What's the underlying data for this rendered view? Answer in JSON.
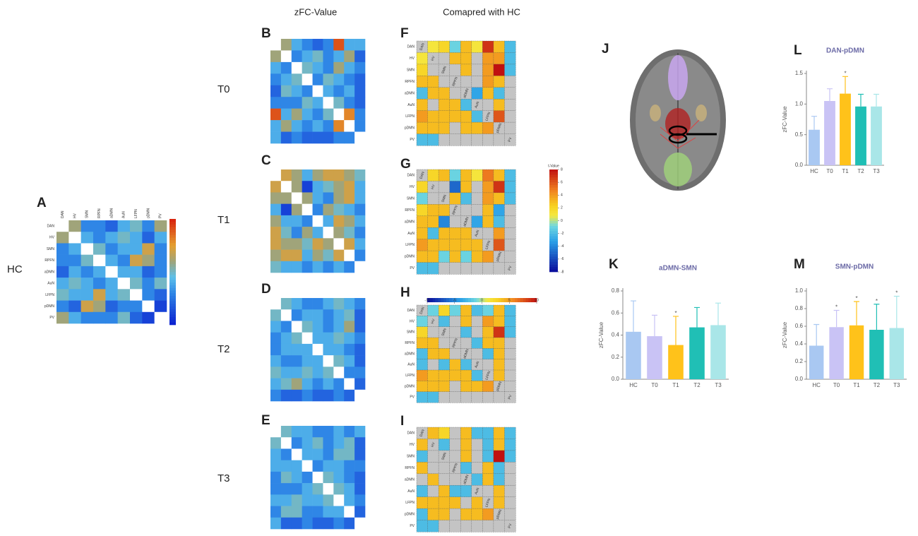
{
  "column_headers": [
    "zFC-Value",
    "Comapred with HC"
  ],
  "brain_panel": "J",
  "networks": [
    "DAN",
    "HV",
    "SMN",
    "RPFN",
    "aDMN",
    "AuN",
    "LFPN",
    "pDMN",
    "PV"
  ],
  "chart_data": [
    {
      "panel": "A",
      "type": "heatmap",
      "group": "HC",
      "show_labels": true,
      "zlim": [
        0,
        1
      ],
      "values": [
        [
          null,
          0.6,
          0.3,
          0.3,
          0.2,
          0.4,
          0.5,
          0.3,
          0.6
        ],
        [
          0.6,
          null,
          0.4,
          0.3,
          0.4,
          0.5,
          0.4,
          0.2,
          0.4
        ],
        [
          0.3,
          0.4,
          null,
          0.5,
          0.3,
          0.4,
          0.4,
          0.7,
          0.3
        ],
        [
          0.3,
          0.3,
          0.5,
          null,
          0.4,
          0.3,
          0.7,
          0.6,
          0.3
        ],
        [
          0.2,
          0.4,
          0.3,
          0.4,
          null,
          0.4,
          0.4,
          0.2,
          0.3
        ],
        [
          0.4,
          0.5,
          0.4,
          0.3,
          0.4,
          null,
          0.5,
          0.3,
          0.5
        ],
        [
          0.5,
          0.4,
          0.4,
          0.7,
          0.4,
          0.5,
          null,
          0.3,
          0.2
        ],
        [
          0.3,
          0.2,
          0.7,
          0.6,
          0.2,
          0.3,
          0.3,
          null,
          0.1
        ],
        [
          0.6,
          0.4,
          0.3,
          0.3,
          0.3,
          0.5,
          0.2,
          0.1,
          null
        ]
      ]
    },
    {
      "panel": "B",
      "type": "heatmap",
      "group": "T0",
      "show_labels": false,
      "zlim": [
        0,
        1
      ],
      "values": [
        [
          null,
          0.6,
          0.4,
          0.3,
          0.2,
          0.3,
          0.9,
          0.4,
          0.4
        ],
        [
          0.6,
          null,
          0.3,
          0.4,
          0.5,
          0.3,
          0.4,
          0.6,
          0.2
        ],
        [
          0.4,
          0.3,
          null,
          0.5,
          0.4,
          0.3,
          0.6,
          0.4,
          0.3
        ],
        [
          0.3,
          0.4,
          0.5,
          null,
          0.3,
          0.5,
          0.4,
          0.3,
          0.2
        ],
        [
          0.2,
          0.5,
          0.4,
          0.3,
          null,
          0.4,
          0.3,
          0.4,
          0.2
        ],
        [
          0.3,
          0.3,
          0.3,
          0.5,
          0.4,
          null,
          0.5,
          0.3,
          0.2
        ],
        [
          0.9,
          0.4,
          0.6,
          0.4,
          0.3,
          0.5,
          null,
          0.8,
          0.3
        ],
        [
          0.4,
          0.6,
          0.4,
          0.3,
          0.4,
          0.3,
          0.8,
          null,
          0.3
        ],
        [
          0.4,
          0.2,
          0.3,
          0.2,
          0.2,
          0.2,
          0.3,
          0.3,
          null
        ]
      ]
    },
    {
      "panel": "C",
      "type": "heatmap",
      "group": "T1",
      "show_labels": false,
      "zlim": [
        0,
        1
      ],
      "values": [
        [
          null,
          0.7,
          0.6,
          0.4,
          0.6,
          0.7,
          0.7,
          0.6,
          0.5
        ],
        [
          0.7,
          null,
          0.6,
          0.1,
          0.4,
          0.5,
          0.6,
          0.7,
          0.4
        ],
        [
          0.6,
          0.6,
          null,
          0.6,
          0.4,
          0.3,
          0.6,
          0.7,
          0.4
        ],
        [
          0.4,
          0.1,
          0.6,
          null,
          0.3,
          0.6,
          0.5,
          0.4,
          0.3
        ],
        [
          0.6,
          0.4,
          0.4,
          0.3,
          null,
          0.4,
          0.7,
          0.6,
          0.4
        ],
        [
          0.7,
          0.5,
          0.3,
          0.6,
          0.4,
          null,
          0.6,
          0.5,
          0.3
        ],
        [
          0.7,
          0.6,
          0.6,
          0.5,
          0.7,
          0.6,
          null,
          0.7,
          0.4
        ],
        [
          0.6,
          0.7,
          0.7,
          0.4,
          0.6,
          0.5,
          0.7,
          null,
          0.3
        ],
        [
          0.5,
          0.4,
          0.4,
          0.3,
          0.4,
          0.3,
          0.4,
          0.3,
          null
        ]
      ]
    },
    {
      "panel": "D",
      "type": "heatmap",
      "group": "T2",
      "show_labels": false,
      "zlim": [
        0,
        1
      ],
      "values": [
        [
          null,
          0.5,
          0.4,
          0.3,
          0.3,
          0.4,
          0.5,
          0.4,
          0.3
        ],
        [
          0.5,
          null,
          0.3,
          0.4,
          0.4,
          0.3,
          0.4,
          0.5,
          0.2
        ],
        [
          0.4,
          0.3,
          null,
          0.5,
          0.4,
          0.3,
          0.4,
          0.6,
          0.2
        ],
        [
          0.3,
          0.4,
          0.5,
          null,
          0.4,
          0.4,
          0.5,
          0.4,
          0.3
        ],
        [
          0.3,
          0.4,
          0.4,
          0.4,
          null,
          0.4,
          0.4,
          0.3,
          0.2
        ],
        [
          0.4,
          0.3,
          0.3,
          0.4,
          0.4,
          null,
          0.5,
          0.4,
          0.2
        ],
        [
          0.5,
          0.4,
          0.4,
          0.5,
          0.4,
          0.5,
          null,
          0.3,
          0.3
        ],
        [
          0.4,
          0.5,
          0.6,
          0.4,
          0.3,
          0.4,
          0.3,
          null,
          0.2
        ],
        [
          0.3,
          0.2,
          0.2,
          0.3,
          0.2,
          0.2,
          0.3,
          0.2,
          null
        ]
      ]
    },
    {
      "panel": "E",
      "type": "heatmap",
      "group": "T3",
      "show_labels": false,
      "zlim": [
        0,
        1
      ],
      "values": [
        [
          null,
          0.5,
          0.4,
          0.4,
          0.3,
          0.3,
          0.4,
          0.3,
          0.4
        ],
        [
          0.5,
          null,
          0.3,
          0.4,
          0.5,
          0.3,
          0.4,
          0.5,
          0.2
        ],
        [
          0.4,
          0.3,
          null,
          0.4,
          0.4,
          0.3,
          0.5,
          0.5,
          0.2
        ],
        [
          0.4,
          0.4,
          0.4,
          null,
          0.3,
          0.4,
          0.4,
          0.3,
          0.3
        ],
        [
          0.3,
          0.5,
          0.4,
          0.3,
          null,
          0.5,
          0.4,
          0.3,
          0.2
        ],
        [
          0.3,
          0.3,
          0.3,
          0.4,
          0.5,
          null,
          0.5,
          0.4,
          0.2
        ],
        [
          0.4,
          0.4,
          0.5,
          0.4,
          0.4,
          0.5,
          null,
          0.4,
          0.3
        ],
        [
          0.3,
          0.5,
          0.5,
          0.3,
          0.3,
          0.4,
          0.4,
          null,
          0.2
        ],
        [
          0.4,
          0.2,
          0.2,
          0.3,
          0.2,
          0.2,
          0.3,
          0.2,
          null
        ]
      ]
    },
    {
      "panel": "F",
      "type": "heatmap",
      "show_labels": true,
      "zlim": [
        -8,
        8
      ],
      "values": [
        [
          null,
          1,
          2,
          -1,
          3,
          1,
          7,
          3,
          -2
        ],
        [
          1,
          null,
          null,
          3,
          3,
          null,
          4,
          4,
          -2
        ],
        [
          2,
          null,
          null,
          null,
          3,
          null,
          4,
          8,
          -2
        ],
        [
          3,
          3,
          null,
          null,
          null,
          null,
          4,
          3,
          null
        ],
        [
          -2,
          3,
          3,
          null,
          null,
          -3,
          3,
          -2,
          null
        ],
        [
          3,
          null,
          3,
          3,
          -2,
          null,
          null,
          3,
          null
        ],
        [
          4,
          3,
          3,
          3,
          3,
          -2,
          null,
          6,
          null
        ],
        [
          3,
          3,
          3,
          null,
          3,
          3,
          4,
          null,
          null
        ],
        [
          -2,
          -2,
          null,
          null,
          null,
          null,
          null,
          null,
          null
        ]
      ]
    },
    {
      "panel": "G",
      "type": "heatmap",
      "show_labels": true,
      "zlim": [
        -8,
        8
      ],
      "colorbar": {
        "label": "t-Value",
        "ticks": [
          8,
          6,
          4,
          2,
          0,
          -2,
          -4,
          -6,
          -8
        ]
      },
      "values": [
        [
          null,
          2,
          3,
          -1,
          3,
          1,
          5,
          3,
          -2
        ],
        [
          2,
          null,
          null,
          -5,
          3,
          null,
          4,
          7,
          -2
        ],
        [
          -1,
          null,
          null,
          3,
          -2,
          null,
          4,
          3,
          -2
        ],
        [
          2,
          3,
          3,
          null,
          null,
          null,
          3,
          -3,
          null
        ],
        [
          3,
          3,
          -4,
          null,
          null,
          -3,
          3,
          -2,
          null
        ],
        [
          3,
          -2,
          3,
          3,
          3,
          null,
          null,
          4,
          null
        ],
        [
          4,
          3,
          3,
          3,
          3,
          3,
          null,
          6,
          null
        ],
        [
          3,
          3,
          -1,
          3,
          -1,
          3,
          4,
          null,
          null
        ],
        [
          -2,
          -2,
          null,
          null,
          null,
          null,
          null,
          null,
          null
        ]
      ]
    },
    {
      "panel": "H",
      "type": "heatmap",
      "show_labels": true,
      "zlim": [
        -8,
        8
      ],
      "colorbar": {
        "ticks": [
          -10,
          -5,
          0,
          5,
          10
        ],
        "lim": [
          -10,
          10
        ]
      },
      "values": [
        [
          null,
          -1,
          2,
          -1,
          3,
          -2,
          -1,
          3,
          -2
        ],
        [
          -1,
          null,
          -2,
          null,
          3,
          null,
          4,
          3,
          -2
        ],
        [
          2,
          null,
          null,
          null,
          -2,
          null,
          3,
          7,
          -2
        ],
        [
          3,
          3,
          null,
          null,
          null,
          -2,
          3,
          3,
          null
        ],
        [
          -2,
          3,
          3,
          null,
          null,
          null,
          -2,
          3,
          null
        ],
        [
          -2,
          null,
          -2,
          3,
          -2,
          null,
          null,
          3,
          null
        ],
        [
          4,
          3,
          3,
          3,
          3,
          -2,
          null,
          3,
          null
        ],
        [
          3,
          3,
          3,
          null,
          3,
          3,
          4,
          null,
          null
        ],
        [
          -2,
          -2,
          null,
          null,
          null,
          null,
          null,
          null,
          null
        ]
      ]
    },
    {
      "panel": "I",
      "type": "heatmap",
      "show_labels": true,
      "zlim": [
        -8,
        8
      ],
      "values": [
        [
          null,
          3,
          2,
          null,
          3,
          -2,
          -2,
          3,
          -2
        ],
        [
          3,
          null,
          -2,
          null,
          3,
          null,
          -2,
          3,
          -2
        ],
        [
          -2,
          null,
          null,
          null,
          3,
          null,
          -2,
          8,
          -2
        ],
        [
          3,
          null,
          null,
          null,
          -2,
          null,
          3,
          -2,
          null
        ],
        [
          null,
          3,
          null,
          null,
          null,
          -2,
          3,
          -2,
          null
        ],
        [
          -2,
          null,
          3,
          -2,
          -2,
          null,
          null,
          3,
          null
        ],
        [
          3,
          3,
          3,
          3,
          null,
          3,
          null,
          3,
          null
        ],
        [
          -2,
          3,
          3,
          null,
          3,
          3,
          4,
          null,
          null
        ],
        [
          -2,
          -2,
          null,
          null,
          null,
          null,
          null,
          null,
          null
        ]
      ]
    },
    {
      "panel": "K",
      "type": "bar",
      "title": "aDMN-SMN",
      "y_label": "zFC-Value",
      "categories": [
        "HC",
        "T0",
        "T1",
        "T2",
        "T3"
      ],
      "values": [
        0.43,
        0.39,
        0.31,
        0.47,
        0.49
      ],
      "errors": [
        0.28,
        0.19,
        0.26,
        0.18,
        0.2
      ],
      "value_annotations": [
        null,
        null,
        "*",
        null,
        null
      ],
      "colors": [
        "#a9c8f2",
        "#c9c3f5",
        "#ffc21a",
        "#20bfb5",
        "#a9e6e8"
      ],
      "ylim": [
        0,
        0.8
      ],
      "yticks": [
        {
          "value": 0,
          "label": "0.0"
        },
        {
          "value": 0.2,
          "label": "0.2"
        },
        {
          "value": 0.4,
          "label": "0.4"
        },
        {
          "value": 0.6,
          "label": "0.6"
        },
        {
          "value": 0.8,
          "label": "0.8"
        }
      ]
    },
    {
      "panel": "L",
      "type": "bar",
      "title": "DAN-pDMN",
      "y_label": "zFC-Value",
      "categories": [
        "HC",
        "T0",
        "T1",
        "T2",
        "T3"
      ],
      "values": [
        0.58,
        1.05,
        1.17,
        0.96,
        0.96
      ],
      "errors": [
        0.22,
        0.2,
        0.28,
        0.2,
        0.2
      ],
      "value_annotations": [
        null,
        null,
        "*",
        null,
        null
      ],
      "colors": [
        "#a9c8f2",
        "#c9c3f5",
        "#ffc21a",
        "#20bfb5",
        "#a9e6e8"
      ],
      "ylim": [
        0,
        1.5
      ],
      "yticks": [
        {
          "value": 0,
          "label": "0.0"
        },
        {
          "value": 0.5,
          "label": "0.5"
        },
        {
          "value": 1,
          "label": "1.0"
        },
        {
          "value": 1.5,
          "label": "1.5"
        }
      ]
    },
    {
      "panel": "M",
      "type": "bar",
      "title": "SMN-pDMN",
      "y_label": "zFC-Value",
      "categories": [
        "HC",
        "T0",
        "T1",
        "T2",
        "T3"
      ],
      "values": [
        0.38,
        0.59,
        0.61,
        0.56,
        0.58
      ],
      "errors": [
        0.24,
        0.19,
        0.27,
        0.29,
        0.36
      ],
      "value_annotations": [
        null,
        "*",
        "*",
        "*",
        "*"
      ],
      "colors": [
        "#a9c8f2",
        "#c9c3f5",
        "#ffc21a",
        "#20bfb5",
        "#a9e6e8"
      ],
      "ylim": [
        0,
        1
      ],
      "yticks": [
        {
          "value": 0,
          "label": "0.0"
        },
        {
          "value": 0.2,
          "label": "0.2"
        },
        {
          "value": 0.4,
          "label": "0.4"
        },
        {
          "value": 0.6,
          "label": "0.6"
        },
        {
          "value": 0.8,
          "label": "0.8"
        },
        {
          "value": 1,
          "label": "1.0"
        }
      ]
    }
  ]
}
